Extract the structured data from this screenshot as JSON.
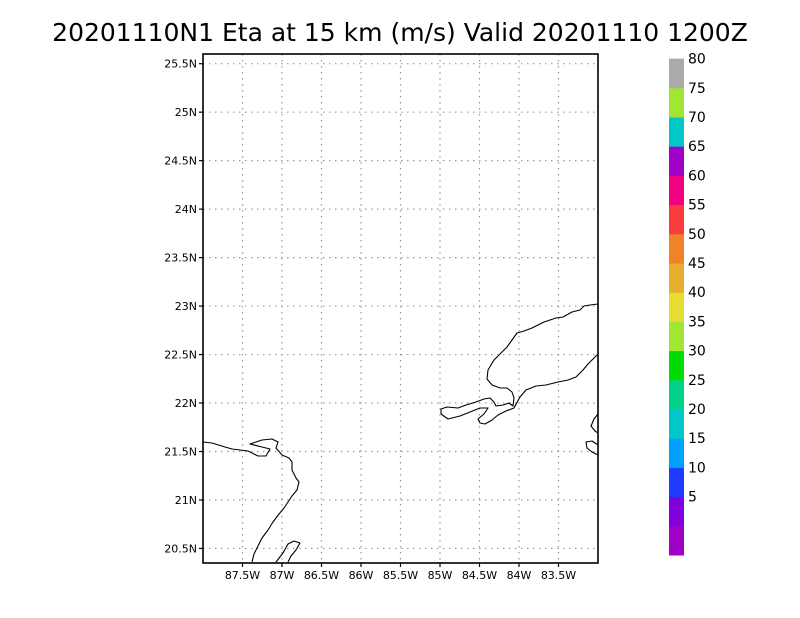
{
  "title": "20201110N1 Eta at 15 km (m/s) Valid 20201110 1200Z",
  "map": {
    "lon_range": [
      -88.0,
      -83.0
    ],
    "lat_range": [
      20.35,
      25.6
    ],
    "lat_ticks": [
      {
        "value": 25.5,
        "label": "25.5N"
      },
      {
        "value": 25.0,
        "label": "25N"
      },
      {
        "value": 24.5,
        "label": "24.5N"
      },
      {
        "value": 24.0,
        "label": "24N"
      },
      {
        "value": 23.5,
        "label": "23.5N"
      },
      {
        "value": 23.0,
        "label": "23N"
      },
      {
        "value": 22.5,
        "label": "22.5N"
      },
      {
        "value": 22.0,
        "label": "22N"
      },
      {
        "value": 21.5,
        "label": "21.5N"
      },
      {
        "value": 21.0,
        "label": "21N"
      },
      {
        "value": 20.5,
        "label": "20.5N"
      }
    ],
    "lon_ticks": [
      {
        "value": -87.5,
        "label": "87.5W"
      },
      {
        "value": -87.0,
        "label": "87W"
      },
      {
        "value": -86.5,
        "label": "86.5W"
      },
      {
        "value": -86.0,
        "label": "86W"
      },
      {
        "value": -85.5,
        "label": "85.5W"
      },
      {
        "value": -85.0,
        "label": "85W"
      },
      {
        "value": -84.5,
        "label": "84.5W"
      },
      {
        "value": -84.0,
        "label": "84W"
      },
      {
        "value": -83.5,
        "label": "83.5W"
      }
    ],
    "grid": true
  },
  "colorbar": {
    "levels": [
      {
        "label": "",
        "color": "#a000c8"
      },
      {
        "label": "5",
        "color": "#8200dc"
      },
      {
        "label": "10",
        "color": "#1e3cff"
      },
      {
        "label": "15",
        "color": "#00a0ff"
      },
      {
        "label": "20",
        "color": "#00c8c8"
      },
      {
        "label": "25",
        "color": "#00d28c"
      },
      {
        "label": "30",
        "color": "#00dc00"
      },
      {
        "label": "35",
        "color": "#a0e632"
      },
      {
        "label": "40",
        "color": "#e6dc32"
      },
      {
        "label": "45",
        "color": "#e6af2d"
      },
      {
        "label": "50",
        "color": "#f08228"
      },
      {
        "label": "55",
        "color": "#fa3c3c"
      },
      {
        "label": "60",
        "color": "#f00082"
      },
      {
        "label": "65",
        "color": "#a000c8"
      },
      {
        "label": "70",
        "color": "#00c8c8"
      },
      {
        "label": "75",
        "color": "#a0e632"
      },
      {
        "label": "80",
        "color": "#aaaaaa"
      }
    ]
  }
}
